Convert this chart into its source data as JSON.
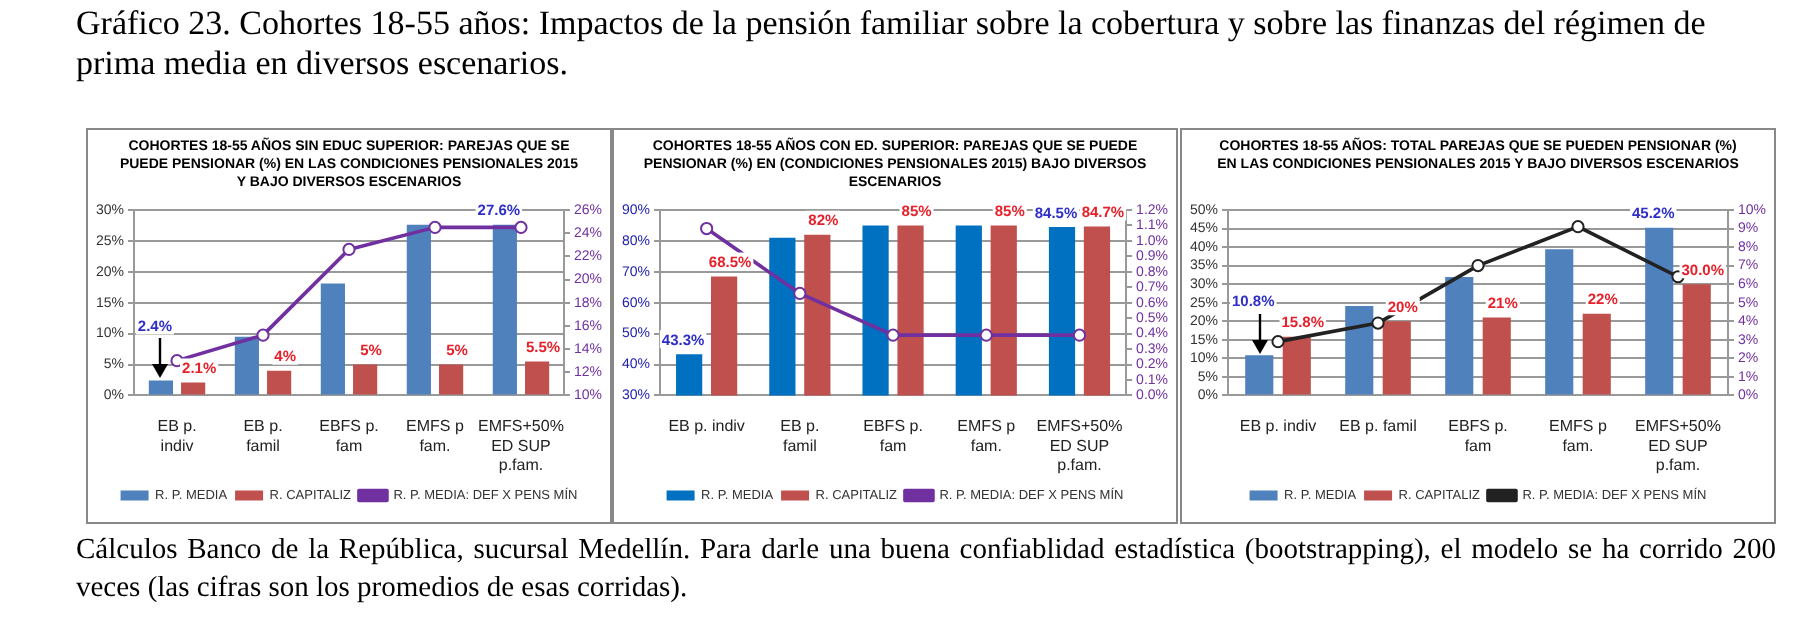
{
  "chart_data": [
    {
      "type": "bar",
      "title": "COHORTES 18-55 AÑOS SIN EDUC SUPERIOR: PAREJAS QUE SE PUEDE PENSIONAR (%) EN LAS CONDICIONES PENSIONALES 2015  Y BAJO DIVERSOS ESCENARIOS",
      "annotations": [
        "Gráfico 23. Cohortes 18-55 años: Impactos de la pensión familiar sobre la cobertura y sobre las finanzas del régimen de prima media en diversos escenarios.",
        "Cálculos Banco de la República, sucursal Medellín. Para darle una buena confiablidad estadística (bootstrapping), el modelo se ha corrido 200 veces (las cifras son los promedios de esas corridas)."
      ],
      "categories": [
        "EB p. indiv",
        "EB p. famil",
        "EBFS p. fam",
        "EMFS p fam.",
        "EMFS+50% ED SUP p.fam."
      ],
      "series": [
        {
          "name": "R. P. MEDIA",
          "color": "#4f81bd",
          "values": [
            2.4,
            9.5,
            18.1,
            27.6,
            27.6
          ],
          "value_labels": [
            "2.4%",
            null,
            null,
            null,
            "27.6%"
          ]
        },
        {
          "name": "R. CAPITALIZ",
          "color": "#c0504d",
          "values": [
            2.1,
            4,
            5,
            5,
            5.5
          ],
          "value_labels": [
            "2.1%",
            "4%",
            "5%",
            "5%",
            "5.5%"
          ]
        },
        {
          "name": "R. P. MEDIA: DEF X PENS MÍN",
          "type": "line",
          "axis": "y2",
          "color": "#7030a0",
          "values": [
            13.0,
            15.2,
            22.6,
            24.5,
            24.5
          ]
        }
      ],
      "ylim": [
        0,
        30
      ],
      "yticks": [
        {
          "value": 0,
          "label": "0%"
        },
        {
          "value": 5,
          "label": "5%"
        },
        {
          "value": 10,
          "label": "10%"
        },
        {
          "value": 15,
          "label": "15%"
        },
        {
          "value": 20,
          "label": "20%"
        },
        {
          "value": 25,
          "label": "25%"
        },
        {
          "value": 30,
          "label": "30%"
        }
      ],
      "y2lim": [
        10,
        26
      ],
      "y2ticks": [
        {
          "value": 10,
          "label": "10%"
        },
        {
          "value": 12,
          "label": "12%"
        },
        {
          "value": 14,
          "label": "14%"
        },
        {
          "value": 16,
          "label": "16%"
        },
        {
          "value": 18,
          "label": "18%"
        },
        {
          "value": 20,
          "label": "20%"
        },
        {
          "value": 22,
          "label": "22%"
        },
        {
          "value": 24,
          "label": "24%"
        },
        {
          "value": 26,
          "label": "26%"
        }
      ],
      "grid": "y",
      "legend": "bottom",
      "marker": "circle"
    },
    {
      "type": "bar",
      "title": "COHORTES 18-55 AÑOS CON ED. SUPERIOR: PAREJAS QUE SE PUEDE PENSIONAR (%) EN (CONDICIONES PENSIONALES 2015)  BAJO DIVERSOS ESCENARIOS",
      "categories": [
        "EB p. indiv",
        "EB p. famil",
        "EBFS p. fam",
        "EMFS p fam.",
        "EMFS+50% ED SUP p.fam."
      ],
      "series": [
        {
          "name": "R. P. MEDIA",
          "color": "#0070c0",
          "values": [
            43.3,
            81,
            85,
            85,
            84.5
          ],
          "value_labels": [
            "43.3%",
            null,
            null,
            null,
            "84.5%"
          ]
        },
        {
          "name": "R. CAPITALIZ",
          "color": "#c0504d",
          "values": [
            68.5,
            82,
            85,
            85,
            84.7
          ],
          "value_labels": [
            "68.5%",
            "82%",
            "85%",
            "85%",
            "84.7%"
          ]
        },
        {
          "name": "R. P. MEDIA: DEF X PENS MÍN",
          "type": "line",
          "axis": "y2",
          "color": "#7030a0",
          "values": [
            1.08,
            0.66,
            0.39,
            0.39,
            0.39
          ]
        }
      ],
      "ylim": [
        30,
        90
      ],
      "yticks": [
        {
          "value": 30,
          "label": "30%"
        },
        {
          "value": 40,
          "label": "40%"
        },
        {
          "value": 50,
          "label": "50%"
        },
        {
          "value": 60,
          "label": "60%"
        },
        {
          "value": 70,
          "label": "70%"
        },
        {
          "value": 80,
          "label": "80%"
        },
        {
          "value": 90,
          "label": "90%"
        }
      ],
      "y2lim": [
        0,
        1.2
      ],
      "y2ticks": [
        {
          "value": 0,
          "label": "0.0%"
        },
        {
          "value": 0.1,
          "label": "0.1%"
        },
        {
          "value": 0.2,
          "label": "0.2%"
        },
        {
          "value": 0.3,
          "label": "0.3%"
        },
        {
          "value": 0.4,
          "label": "0.4%"
        },
        {
          "value": 0.5,
          "label": "0.5%"
        },
        {
          "value": 0.6,
          "label": "0.6%"
        },
        {
          "value": 0.7,
          "label": "0.7%"
        },
        {
          "value": 0.8,
          "label": "0.8%"
        },
        {
          "value": 0.9,
          "label": "0.9%"
        },
        {
          "value": 1.0,
          "label": "1.0%"
        },
        {
          "value": 1.1,
          "label": "1.1%"
        },
        {
          "value": 1.2,
          "label": "1.2%"
        }
      ],
      "grid": "y",
      "legend": "bottom",
      "marker": "circle"
    },
    {
      "type": "bar",
      "title": "COHORTES 18-55 AÑOS: TOTAL PAREJAS QUE SE PUEDEN PENSIONAR (%) EN LAS CONDICIONES PENSIONALES 2015  Y BAJO DIVERSOS ESCENARIOS",
      "categories": [
        "EB p. indiv",
        "EB p. famil",
        "EBFS p. fam",
        "EMFS p fam.",
        "EMFS+50% ED SUP p.fam."
      ],
      "series": [
        {
          "name": "R. P. MEDIA",
          "color": "#4f81bd",
          "values": [
            10.8,
            24.1,
            31.9,
            39.4,
            45.2
          ],
          "value_labels": [
            "10.8%",
            null,
            null,
            null,
            "45.2%"
          ]
        },
        {
          "name": "R. CAPITALIZ",
          "color": "#c0504d",
          "values": [
            15.8,
            20,
            21,
            22,
            30.0
          ],
          "value_labels": [
            "15.8%",
            "20%",
            "21%",
            "22%",
            "30.0%"
          ]
        },
        {
          "name": "R. P. MEDIA: DEF X PENS MÍN",
          "type": "line",
          "axis": "y2",
          "color": "#222222",
          "values": [
            2.9,
            3.9,
            7.0,
            9.1,
            6.4
          ]
        }
      ],
      "ylim": [
        0,
        50
      ],
      "yticks": [
        {
          "value": 0,
          "label": "0%"
        },
        {
          "value": 5,
          "label": "5%"
        },
        {
          "value": 10,
          "label": "10%"
        },
        {
          "value": 15,
          "label": "15%"
        },
        {
          "value": 20,
          "label": "20%"
        },
        {
          "value": 25,
          "label": "25%"
        },
        {
          "value": 30,
          "label": "30%"
        },
        {
          "value": 35,
          "label": "35%"
        },
        {
          "value": 40,
          "label": "40%"
        },
        {
          "value": 45,
          "label": "45%"
        },
        {
          "value": 50,
          "label": "50%"
        }
      ],
      "y2lim": [
        0,
        10
      ],
      "y2ticks": [
        {
          "value": 0,
          "label": "0%"
        },
        {
          "value": 1,
          "label": "1%"
        },
        {
          "value": 2,
          "label": "2%"
        },
        {
          "value": 3,
          "label": "3%"
        },
        {
          "value": 4,
          "label": "4%"
        },
        {
          "value": 5,
          "label": "5%"
        },
        {
          "value": 6,
          "label": "6%"
        },
        {
          "value": 7,
          "label": "7%"
        },
        {
          "value": 8,
          "label": "8%"
        },
        {
          "value": 9,
          "label": "9%"
        },
        {
          "value": 10,
          "label": "10%"
        }
      ],
      "grid": "y",
      "legend": "bottom",
      "marker": "circle"
    }
  ]
}
